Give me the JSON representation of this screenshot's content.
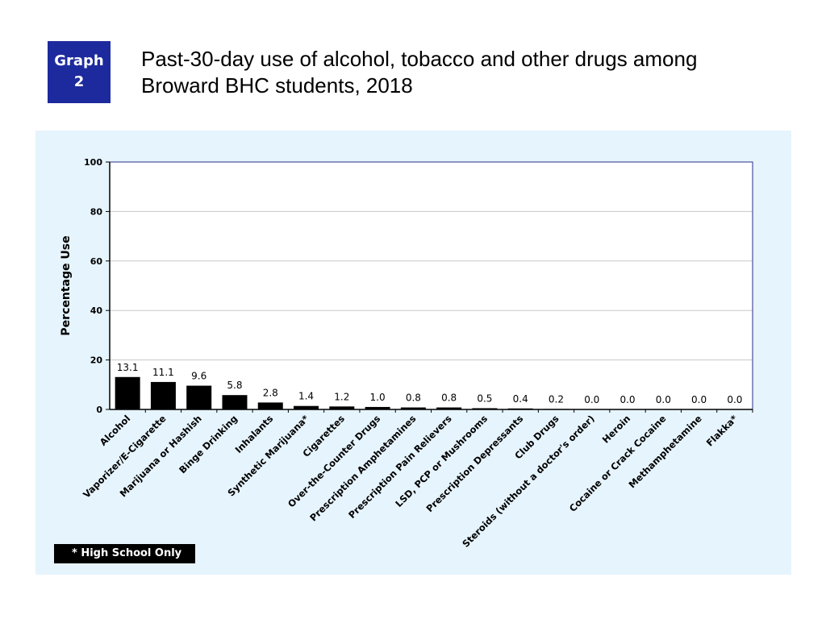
{
  "badge": {
    "line1": "Graph",
    "line2": "2"
  },
  "title": {
    "line1": "Past-30-day use of alcohol, tobacco and other drugs among",
    "line2": "Broward BHC students, 2018"
  },
  "footnote": "* High School Only",
  "chart_data": {
    "type": "bar",
    "title": "",
    "xlabel": "",
    "ylabel": "Percentage Use",
    "ylim": [
      0,
      100
    ],
    "yticks": [
      "0",
      "20",
      "40",
      "60",
      "80",
      "100"
    ],
    "grid": true,
    "categories": [
      "Alcohol",
      "Vaporizer/E-Cigarette",
      "Marijuana or Hashish",
      "Binge Drinking",
      "Inhalants",
      "Synthetic Marijuana*",
      "Cigarettes",
      "Over-the-Counter Drugs",
      "Prescription Amphetamines",
      "Prescription Pain Relievers",
      "LSD, PCP or Mushrooms",
      "Prescription Depressants",
      "Club Drugs",
      "Steroids (without a doctor's order)",
      "Heroin",
      "Cocaine or Crack Cocaine",
      "Methamphetamine",
      "Flakka*"
    ],
    "values": [
      13.1,
      11.1,
      9.6,
      5.8,
      2.8,
      1.4,
      1.2,
      1.0,
      0.8,
      0.8,
      0.5,
      0.4,
      0.2,
      0.0,
      0.0,
      0.0,
      0.0,
      0.0
    ],
    "labels": [
      "13.1",
      "11.1",
      "9.6",
      "5.8",
      "2.8",
      "1.4",
      "1.2",
      "1.0",
      "0.8",
      "0.8",
      "0.5",
      "0.4",
      "0.2",
      "0.0",
      "0.0",
      "0.0",
      "0.0",
      "0.0"
    ],
    "colors": {
      "bar": "#000000",
      "axis": "#2b2b8c",
      "grid": "#c8c8c8",
      "panel": "#e6f4fd",
      "plot": "#ffffff"
    }
  }
}
